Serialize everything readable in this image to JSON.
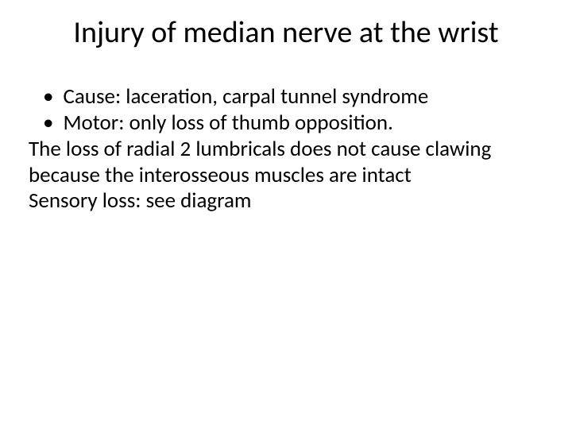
{
  "title": "Injury of median nerve at the wrist",
  "bullets": [
    "Cause: laceration, carpal tunnel syndrome",
    "Motor: only loss of thumb opposition."
  ],
  "paragraphs": [
    "The loss of radial 2 lumbricals does not cause clawing because the interosseous muscles are intact",
    "Sensory loss: see diagram"
  ],
  "colors": {
    "background": "#ffffff",
    "text": "#000000"
  },
  "fontsizes": {
    "title": 38,
    "body": 27
  }
}
